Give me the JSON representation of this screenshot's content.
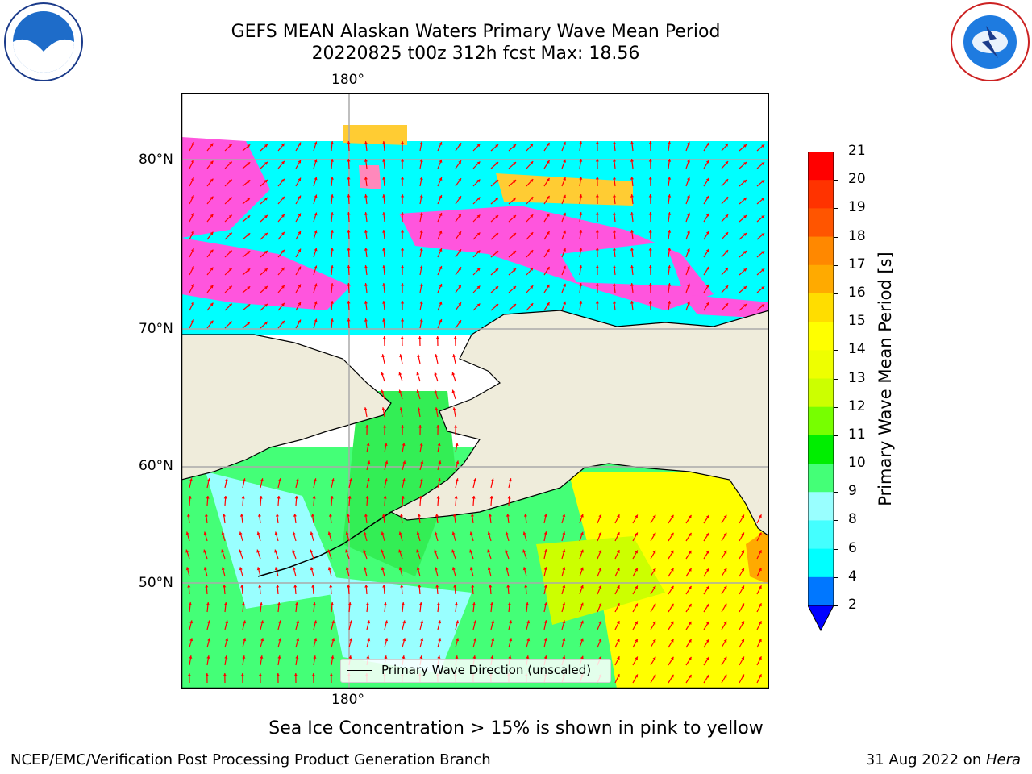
{
  "title_line1": "GEFS MEAN Alaskan Waters Primary Wave Mean Period",
  "title_line2": "20220825 t00z 312h fcst   Max: 18.56",
  "logos": {
    "left": "NOAA",
    "right": "NATIONAL WEATHER SERVICE"
  },
  "map": {
    "lon_label_top": "180°",
    "lon_label_bottom": "180°",
    "lat_labels": [
      "80°N",
      "70°N",
      "60°N",
      "50°N"
    ],
    "legend_label": "Primary Wave Direction (unscaled)",
    "colors": {
      "land": "#efecdb",
      "ocean_low": "#00ffff",
      "ocean_mid": "#33ff66",
      "ocean_high": "#ffff00",
      "ice": "#ff55dd",
      "arrows": "#ff0000"
    }
  },
  "colorbar": {
    "label": "Primary Wave Mean Period [s]",
    "ticks": [
      "21",
      "20",
      "19",
      "18",
      "17",
      "16",
      "15",
      "14",
      "13",
      "12",
      "11",
      "10",
      "9",
      "8",
      "6",
      "4",
      "2"
    ],
    "colors": [
      "#ff0000",
      "#ff3300",
      "#ff5500",
      "#ff8800",
      "#ffaa00",
      "#ffdd00",
      "#ffff00",
      "#eeff00",
      "#ccff00",
      "#77ff00",
      "#00ee00",
      "#44ff77",
      "#99ffff",
      "#44ffff",
      "#00ffff",
      "#0077ff",
      "#0000ff"
    ]
  },
  "caption": "Sea Ice Concentration > 15% is shown in pink to yellow",
  "footer_left": "NCEP/EMC/Verification Post Processing Product Generation Branch",
  "footer_right_prefix": "31 Aug 2022 on ",
  "footer_right_host": "Hera"
}
